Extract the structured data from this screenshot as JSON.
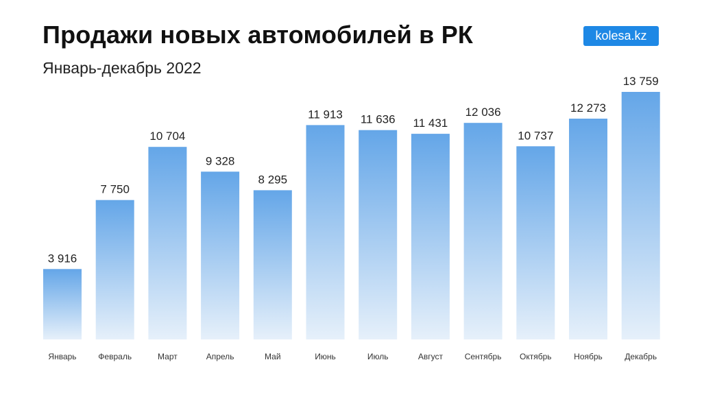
{
  "header": {
    "logo_text": "kolesa.kz"
  },
  "colors": {
    "bar_top": "#64a6e8",
    "bar_bottom": "#e6f0fa",
    "logo_bg": "#1e88e5"
  },
  "chart_data": {
    "type": "bar",
    "title": "Продажи новых автомобилей в РК",
    "subtitle": "Январь-декабрь 2022",
    "categories": [
      "Январь",
      "Февраль",
      "Март",
      "Апрель",
      "Май",
      "Июнь",
      "Июль",
      "Август",
      "Сентябрь",
      "Октябрь",
      "Ноябрь",
      "Декабрь"
    ],
    "values": [
      3916,
      7750,
      10704,
      9328,
      8295,
      11913,
      11636,
      11431,
      12036,
      10737,
      12273,
      13759
    ],
    "value_labels": [
      "3 916",
      "7 750",
      "10 704",
      "9 328",
      "8 295",
      "11 913",
      "11 636",
      "11 431",
      "12 036",
      "10 737",
      "12 273",
      "13 759"
    ],
    "xlabel": "",
    "ylabel": "",
    "ylim": [
      0,
      13759
    ],
    "grid": false,
    "legend": "none"
  }
}
